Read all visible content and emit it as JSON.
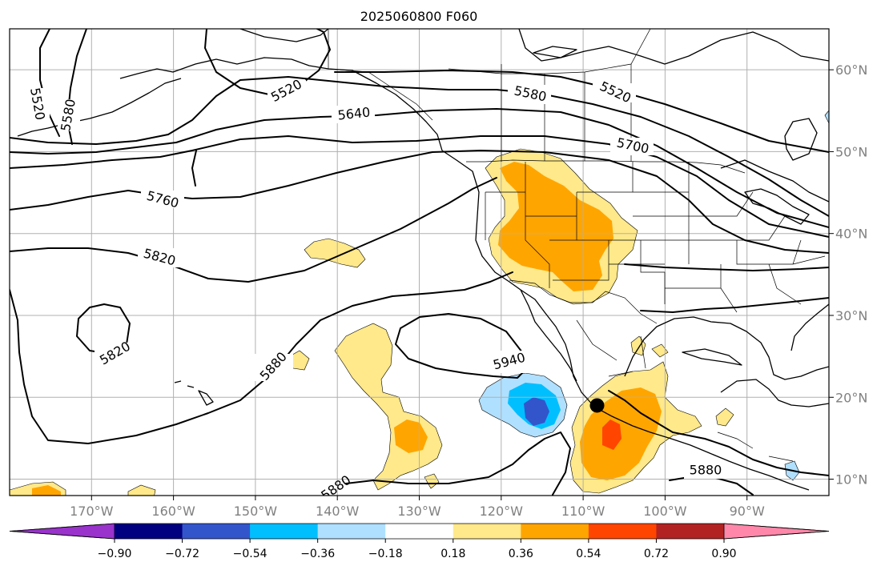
{
  "title": "2025060800 F060",
  "colors": {
    "neg_090": "#9933cc",
    "neg_072": "#000080",
    "neg_054": "#3355cc",
    "neg_036": "#00bfff",
    "neg_018": "#b0e0ff",
    "zero": "#ffffff",
    "pos_018": "#ffe98a",
    "pos_036": "#ffa500",
    "pos_054": "#ff4500",
    "pos_072": "#b22222",
    "pos_090": "#ff88aa"
  },
  "chart_data": {
    "type": "map",
    "projection": "lat-lon",
    "lon_range": [
      -180,
      -80
    ],
    "lat_range": [
      8,
      65
    ],
    "grid": true,
    "lon_ticks": [
      "170°W",
      "160°W",
      "150°W",
      "140°W",
      "130°W",
      "120°W",
      "110°W",
      "100°W",
      "90°W"
    ],
    "lat_ticks": [
      "60°N",
      "50°N",
      "40°N",
      "30°N",
      "20°N",
      "10°N"
    ],
    "colorbar": {
      "orientation": "horizontal",
      "extend": "both",
      "tick_labels": [
        "−0.90",
        "−0.72",
        "−0.54",
        "−0.36",
        "−0.18",
        "0.18",
        "0.36",
        "0.54",
        "0.72",
        "0.90"
      ]
    },
    "contour_labels": [
      "5520",
      "5520",
      "5520",
      "5580",
      "5580",
      "5640",
      "5700",
      "5760",
      "5820",
      "5820",
      "5880",
      "5880",
      "5940",
      "5880"
    ],
    "marker": {
      "lon": -108.3,
      "lat": 19.0
    }
  }
}
